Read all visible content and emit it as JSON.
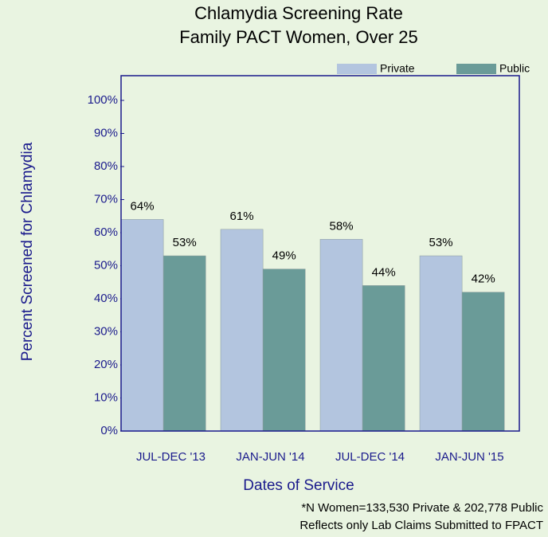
{
  "chart_data": {
    "type": "bar",
    "title": "Chlamydia Screening Rate",
    "subtitle": "Family PACT Women, Over 25",
    "x_label": "Dates of Service",
    "y_label": "Percent Screened for Chlamydia",
    "notes": [
      "*N Women=133,530 Private & 202,778 Public",
      "Reflects only Lab Claims Submitted to FPACT"
    ],
    "categories": [
      "JUL-DEC '13",
      "JAN-JUN '14",
      "JUL-DEC '14",
      "JAN-JUN '15"
    ],
    "series": [
      {
        "name": "Private",
        "color": "#b3c5df",
        "values": [
          64,
          61,
          58,
          53
        ],
        "value_labels": [
          "64%",
          "61%",
          "58%",
          "53%"
        ]
      },
      {
        "name": "Public",
        "color": "#6a9b98",
        "values": [
          53,
          49,
          44,
          42
        ],
        "value_labels": [
          "53%",
          "49%",
          "44%",
          "42%"
        ]
      }
    ],
    "ylim": [
      0,
      100
    ],
    "yticks": [
      {
        "value": 0,
        "label": "0%"
      },
      {
        "value": 10,
        "label": "10%"
      },
      {
        "value": 20,
        "label": "20%"
      },
      {
        "value": 30,
        "label": "30%"
      },
      {
        "value": 40,
        "label": "40%"
      },
      {
        "value": 50,
        "label": "50%"
      },
      {
        "value": 60,
        "label": "60%"
      },
      {
        "value": 70,
        "label": "70%"
      },
      {
        "value": 80,
        "label": "80%"
      },
      {
        "value": 90,
        "label": "90%"
      },
      {
        "value": 100,
        "label": "100%"
      }
    ],
    "grid": false,
    "legend": "top-right"
  }
}
